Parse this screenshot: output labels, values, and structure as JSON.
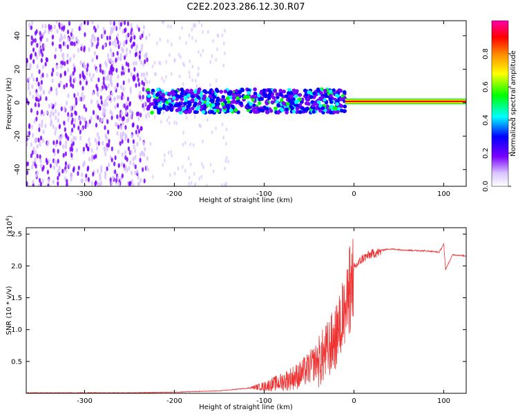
{
  "title": "C2E2.2023.286.12.30.R07",
  "chart_data": [
    {
      "type": "heatmap",
      "xlabel": "Height of straight line (km)",
      "ylabel": "Frequency (Hz)",
      "xlim": [
        -365,
        125
      ],
      "ylim": [
        -50,
        49
      ],
      "x_ticks": [
        -300,
        -200,
        -100,
        0,
        100
      ],
      "x_tick_labels": [
        "-300",
        "-200",
        "-100",
        "0",
        "100"
      ],
      "y_ticks": [
        -40,
        -20,
        0,
        20,
        40
      ],
      "y_tick_labels": [
        "-40",
        "-20",
        "0",
        "20",
        "40"
      ],
      "colorbar": {
        "label": "Normalized spectral amplitude",
        "range": [
          0,
          1
        ],
        "ticks": [
          0,
          0.2,
          0.4,
          0.6,
          0.8
        ],
        "tick_labels": [
          "0.0",
          "0.2",
          "0.4",
          "0.6",
          "0.8"
        ],
        "colormap": [
          "#ffffff",
          "#d9c4ff",
          "#7a00ff",
          "#0000ff",
          "#00ffff",
          "#00ff00",
          "#ffff00",
          "#ff8800",
          "#ff0000",
          "#ff00aa"
        ]
      },
      "description_regions": [
        {
          "x": [
            -365,
            -230
          ],
          "f": [
            -50,
            49
          ],
          "amplitude": 0.25,
          "kind": "noise"
        },
        {
          "x": [
            -230,
            -10
          ],
          "f": [
            -6,
            8
          ],
          "amplitude": 0.55,
          "kind": "signal band"
        },
        {
          "x": [
            -10,
            125
          ],
          "f": [
            -0.5,
            2
          ],
          "amplitude": 0.9,
          "kind": "carrier line"
        }
      ]
    },
    {
      "type": "line",
      "xlabel": "Height of straight line (km)",
      "ylabel": "SNR (10 * v/v)",
      "scale_label": "(x10",
      "scale_exponent": "4",
      "scale_close": ")",
      "xlim": [
        -365,
        125
      ],
      "ylim": [
        0,
        2.6
      ],
      "x_ticks": [
        -300,
        -200,
        -100,
        0,
        100
      ],
      "x_tick_labels": [
        "-300",
        "-200",
        "-100",
        "0",
        "100"
      ],
      "y_ticks": [
        0.5,
        1.0,
        1.5,
        2.0,
        2.5
      ],
      "y_tick_labels": [
        "0.5",
        "1.0",
        "1.5",
        "2.0",
        "2.5"
      ],
      "color": "#ee3333",
      "envelope": {
        "x": [
          -365,
          -250,
          -200,
          -150,
          -120,
          -100,
          -80,
          -60,
          -50,
          -40,
          -30,
          -20,
          -15,
          -10,
          -5,
          0,
          10,
          20,
          30,
          40,
          50,
          60,
          80,
          95,
          100,
          102,
          110,
          125
        ],
        "y": [
          0.01,
          0.01,
          0.02,
          0.04,
          0.08,
          0.14,
          0.24,
          0.38,
          0.5,
          0.65,
          0.85,
          1.1,
          1.3,
          1.5,
          1.75,
          2.0,
          2.15,
          2.22,
          2.25,
          2.27,
          2.26,
          2.25,
          2.24,
          2.22,
          2.35,
          1.95,
          2.18,
          2.16
        ]
      }
    }
  ]
}
